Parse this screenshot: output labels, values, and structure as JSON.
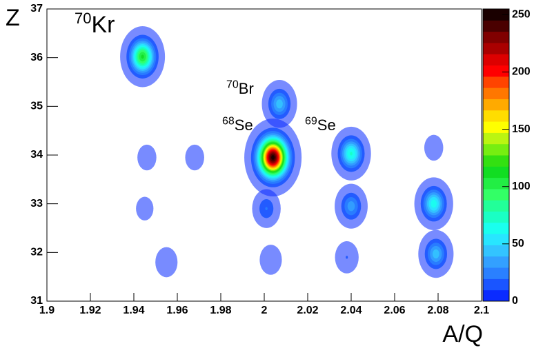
{
  "chart_data": {
    "type": "hist2d",
    "x_label": "A/Q",
    "y_label": "Z",
    "xlim": [
      1.9,
      2.1
    ],
    "xticks": [
      1.9,
      1.92,
      1.94,
      1.96,
      1.98,
      2,
      2.02,
      2.04,
      2.06,
      2.08,
      2.1
    ],
    "ylim": [
      31,
      37
    ],
    "yticks": [
      31,
      32,
      33,
      34,
      35,
      36,
      37
    ],
    "zlim": [
      0,
      255
    ],
    "zticks": [
      0,
      50,
      100,
      150,
      200,
      250
    ],
    "palette": [
      "#0a2bff",
      "#1a55ff",
      "#2a80ff",
      "#33a0ff",
      "#33c4ff",
      "#28e6ff",
      "#1affee",
      "#1affc4",
      "#22ff99",
      "#33ff66",
      "#22ee44",
      "#11dd22",
      "#33e011",
      "#77ee11",
      "#bbf511",
      "#ffff00",
      "#ffdd00",
      "#ffaa00",
      "#ff7700",
      "#ff4400",
      "#ff0000",
      "#dd0000",
      "#aa0000",
      "#800000",
      "#4a0000",
      "#1a0000"
    ],
    "clusters": [
      {
        "x": 1.944,
        "y": 36.02,
        "peak": 110
      },
      {
        "x": 2.007,
        "y": 35.05,
        "peak": 45
      },
      {
        "x": 2.004,
        "y": 33.95,
        "peak": 250
      },
      {
        "x": 2.04,
        "y": 34.03,
        "peak": 70
      },
      {
        "x": 2.078,
        "y": 33.0,
        "peak": 65
      },
      {
        "x": 2.079,
        "y": 31.97,
        "peak": 45
      },
      {
        "x": 2.04,
        "y": 32.95,
        "peak": 35
      },
      {
        "x": 2.001,
        "y": 32.9,
        "peak": 20
      },
      {
        "x": 2.038,
        "y": 31.9,
        "peak": 10
      },
      {
        "x": 2.003,
        "y": 31.85,
        "peak": 8
      },
      {
        "x": 1.955,
        "y": 31.8,
        "peak": 8
      },
      {
        "x": 1.946,
        "y": 33.95,
        "peak": 5
      },
      {
        "x": 1.968,
        "y": 33.95,
        "peak": 5
      },
      {
        "x": 2.078,
        "y": 34.15,
        "peak": 5
      },
      {
        "x": 1.945,
        "y": 32.9,
        "peak": 4
      }
    ],
    "annotations": [
      {
        "mass": "70",
        "element": "Kr"
      },
      {
        "mass": "70",
        "element": "Br"
      },
      {
        "mass": "68",
        "element": "Se"
      },
      {
        "mass": "69",
        "element": "Se"
      }
    ]
  }
}
